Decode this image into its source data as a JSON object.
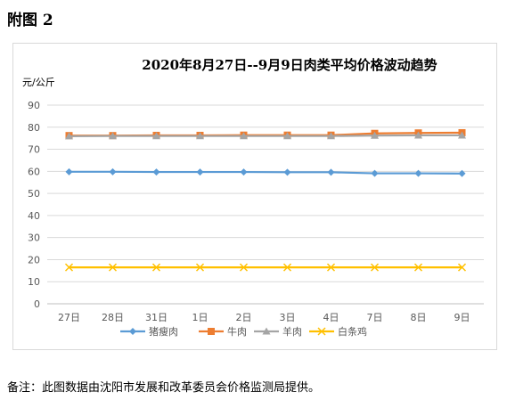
{
  "page": {
    "appendix_label": "附图 2",
    "note": "备注：此图数据由沈阳市发展和改革委员会价格监测局提供。"
  },
  "chart_data": {
    "type": "line",
    "title": "2020年8月27日--9月9日肉类平均价格波动趋势",
    "ylabel": "元/公斤",
    "xlabel": "",
    "ylim": [
      0,
      90
    ],
    "yticks": [
      0,
      10,
      20,
      30,
      40,
      50,
      60,
      70,
      80,
      90
    ],
    "grid": true,
    "legend_position": "bottom",
    "categories": [
      "27日",
      "28日",
      "31日",
      "1日",
      "2日",
      "3日",
      "4日",
      "7日",
      "8日",
      "9日"
    ],
    "series": [
      {
        "name": "猪瘦肉",
        "color": "#5b9bd5",
        "marker": "diamond",
        "values": [
          59.8,
          59.8,
          59.7,
          59.7,
          59.7,
          59.6,
          59.6,
          59.1,
          59.1,
          59.0
        ]
      },
      {
        "name": "牛肉",
        "color": "#ed7d31",
        "marker": "square",
        "values": [
          76.2,
          76.2,
          76.3,
          76.3,
          76.4,
          76.4,
          76.4,
          77.2,
          77.4,
          77.5
        ]
      },
      {
        "name": "羊肉",
        "color": "#a5a5a5",
        "marker": "triangle",
        "values": [
          75.9,
          76.0,
          76.0,
          76.0,
          76.0,
          76.0,
          76.0,
          76.2,
          76.3,
          76.3
        ]
      },
      {
        "name": "白条鸡",
        "color": "#ffc000",
        "marker": "x",
        "values": [
          16.5,
          16.5,
          16.5,
          16.5,
          16.5,
          16.5,
          16.5,
          16.5,
          16.5,
          16.5
        ]
      }
    ]
  }
}
